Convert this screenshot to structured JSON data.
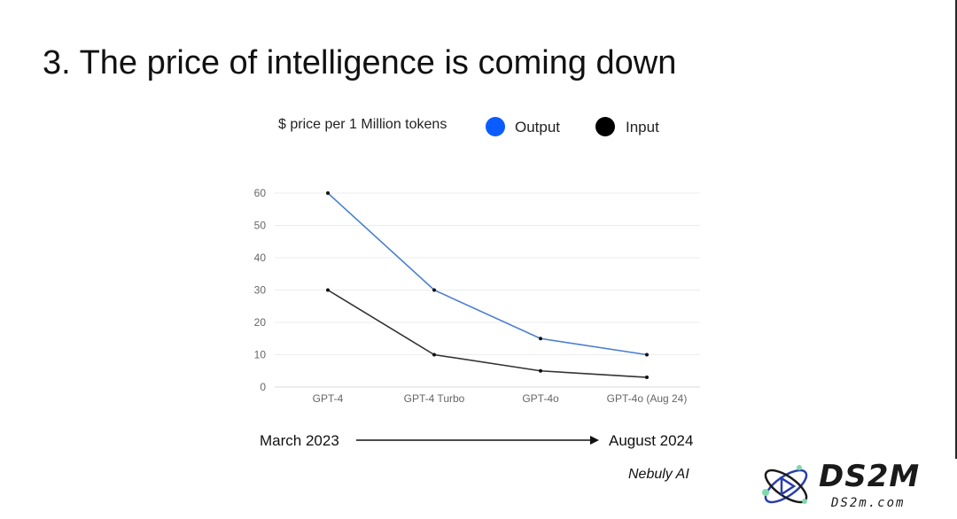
{
  "slide": {
    "title": "3. The price of intelligence is coming down"
  },
  "chart_data": {
    "type": "line",
    "title": "$ price per 1 Million tokens",
    "categories": [
      "GPT-4",
      "GPT-4 Turbo",
      "GPT-4o",
      "GPT-4o (Aug 24)"
    ],
    "series": [
      {
        "name": "Output",
        "values": [
          60,
          30,
          15,
          10
        ],
        "color": "#0b5cff"
      },
      {
        "name": "Input",
        "values": [
          30,
          10,
          5,
          3
        ],
        "color": "#000000"
      }
    ],
    "y_ticks": [
      0,
      10,
      20,
      30,
      40,
      50,
      60
    ],
    "ylim": [
      0,
      60
    ],
    "grid": true,
    "legend_position": "top",
    "line_colors": {
      "Output": "#4a7fd0",
      "Input": "#333333"
    }
  },
  "timeline": {
    "start": "March 2023",
    "end": "August 2024"
  },
  "source": "Nebuly AI",
  "logo": {
    "wordmark": "DS2M",
    "url": "DS2m.com"
  }
}
